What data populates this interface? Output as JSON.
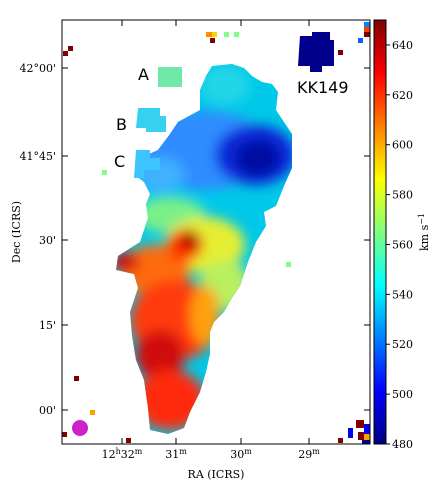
{
  "chart_data": {
    "type": "heatmap",
    "title": "",
    "xlabel": "RA (ICRS)",
    "ylabel": "Dec (ICRS)",
    "x_ticks": [
      {
        "pre": "12",
        "pre_sup": "h",
        "main": "32",
        "main_sup": "m"
      },
      {
        "pre": "",
        "pre_sup": "",
        "main": "31",
        "main_sup": "m"
      },
      {
        "pre": "",
        "pre_sup": "",
        "main": "30",
        "main_sup": "m"
      },
      {
        "pre": "",
        "pre_sup": "",
        "main": "29",
        "main_sup": "m"
      }
    ],
    "y_ticks": [
      "42°00'",
      "41°45'",
      "30'",
      "15'",
      "00'"
    ],
    "colorbar": {
      "label": "km s",
      "label_sup": "−1",
      "vmin": 480,
      "vmax": 650,
      "ticks": [
        "480",
        "500",
        "520",
        "540",
        "560",
        "580",
        "600",
        "620",
        "640"
      ]
    },
    "annotations": [
      "A",
      "B",
      "C",
      "KK149"
    ],
    "features": [
      {
        "name": "main velocity field",
        "velocity_range_kms": [
          490,
          645
        ]
      },
      {
        "name": "KK149",
        "velocity_kms": 485
      },
      {
        "name": "A",
        "velocity_kms": 548
      },
      {
        "name": "B",
        "velocity_kms": 530
      },
      {
        "name": "C",
        "velocity_kms": 527
      }
    ],
    "beam_color": "#cc22cc",
    "colormap": "jet"
  }
}
